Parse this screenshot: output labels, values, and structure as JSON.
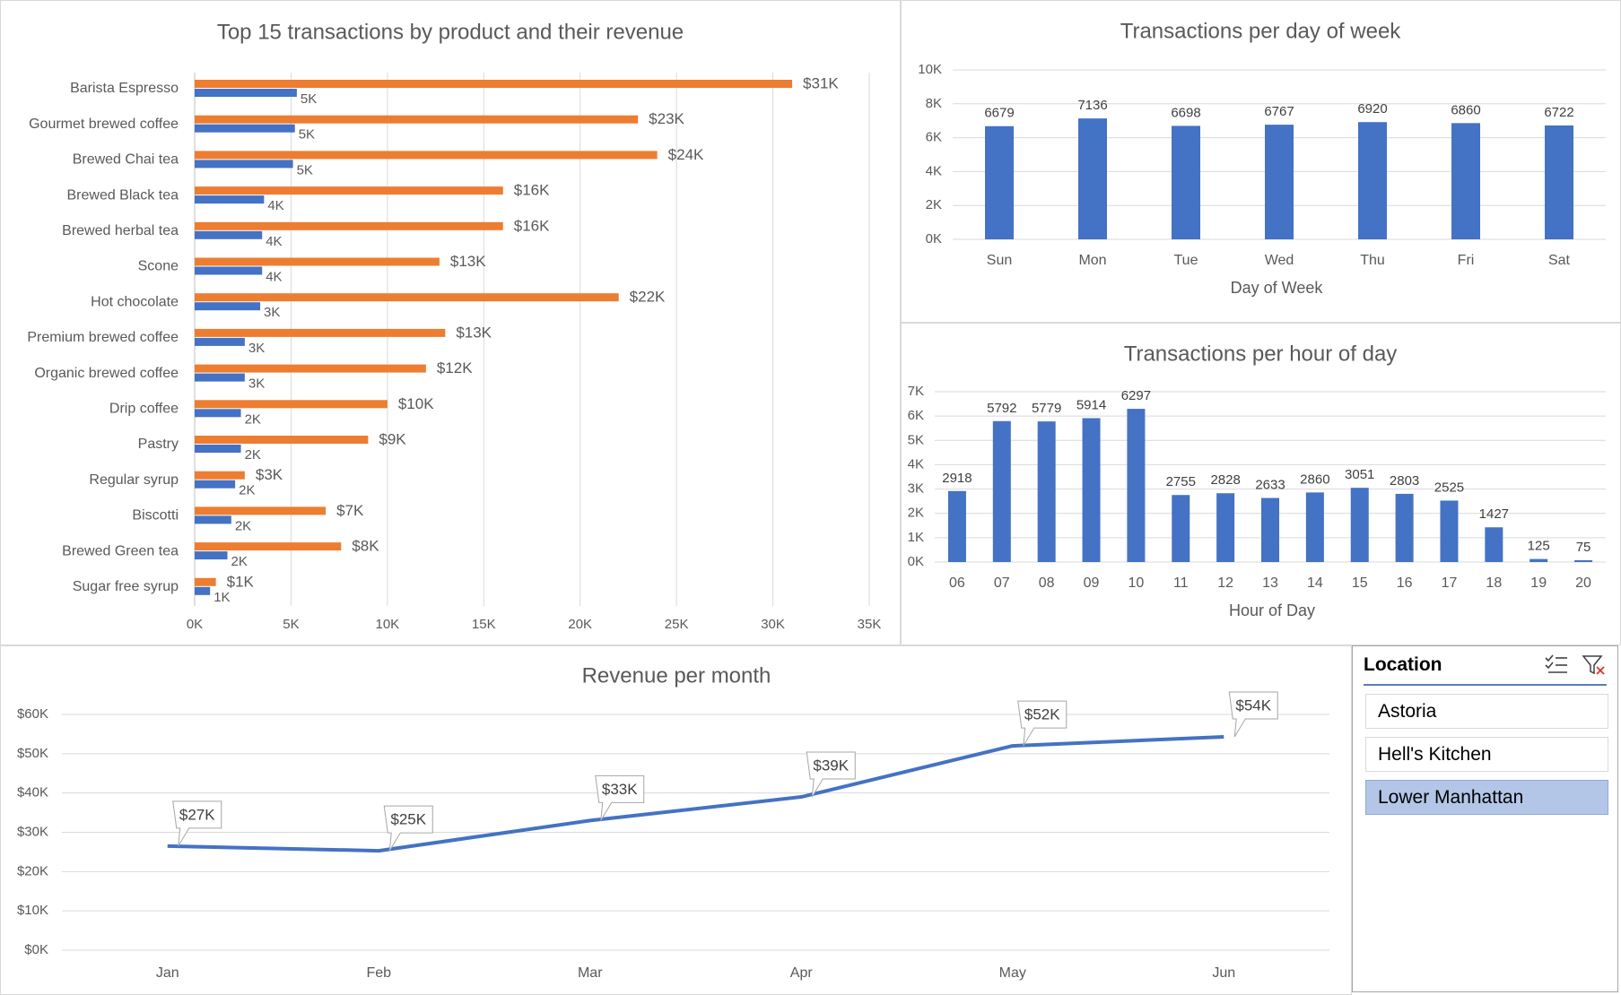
{
  "colors": {
    "blue": "#4472c4",
    "orange": "#ed7d31",
    "grid": "#d9d9d9",
    "text": "#595959",
    "slicer_selected": "#b4c6e7"
  },
  "chart_data": [
    {
      "type": "bar",
      "orientation": "horizontal",
      "title": "Top 15 transactions by product and their revenue",
      "categories": [
        "Barista Espresso",
        "Gourmet brewed coffee",
        "Brewed Chai tea",
        "Brewed Black tea",
        "Brewed herbal tea",
        "Scone",
        "Hot chocolate",
        "Premium brewed coffee",
        "Organic brewed coffee",
        "Drip coffee",
        "Pastry",
        "Regular syrup",
        "Biscotti",
        "Brewed Green tea",
        "Sugar free syrup"
      ],
      "series": [
        {
          "values": [
            31000,
            23000,
            24000,
            16000,
            16000,
            12700,
            22000,
            13000,
            12000,
            10000,
            9000,
            2600,
            6800,
            7600,
            1100
          ],
          "labels": [
            "$31K",
            "$23K",
            "$24K",
            "$16K",
            "$16K",
            "$13K",
            "$22K",
            "$13K",
            "$12K",
            "$10K",
            "$9K",
            "$3K",
            "$7K",
            "$8K",
            "$1K"
          ],
          "color": "#ed7d31"
        },
        {
          "values": [
            5300,
            5200,
            5100,
            3600,
            3500,
            3500,
            3400,
            2600,
            2600,
            2400,
            2400,
            2100,
            1900,
            1700,
            800
          ],
          "labels": [
            "5K",
            "5K",
            "5K",
            "4K",
            "4K",
            "4K",
            "3K",
            "3K",
            "3K",
            "2K",
            "2K",
            "2K",
            "2K",
            "2K",
            "1K"
          ],
          "color": "#4472c4"
        }
      ],
      "xticks": [
        "0K",
        "5K",
        "10K",
        "15K",
        "20K",
        "25K",
        "30K",
        "35K"
      ],
      "xlim": [
        0,
        35000
      ],
      "grid": true
    },
    {
      "type": "bar",
      "title": "Transactions per day of week",
      "categories": [
        "Sun",
        "Mon",
        "Tue",
        "Wed",
        "Thu",
        "Fri",
        "Sat"
      ],
      "values": [
        6679,
        7136,
        6698,
        6767,
        6920,
        6860,
        6722
      ],
      "xlabel": "Day of Week",
      "yticks": [
        "0K",
        "2K",
        "4K",
        "6K",
        "8K",
        "10K"
      ],
      "ylim": [
        0,
        10000
      ],
      "grid": true
    },
    {
      "type": "bar",
      "title": "Transactions per hour of day",
      "categories": [
        "06",
        "07",
        "08",
        "09",
        "10",
        "11",
        "12",
        "13",
        "14",
        "15",
        "16",
        "17",
        "18",
        "19",
        "20"
      ],
      "values": [
        2918,
        5792,
        5779,
        5914,
        6297,
        2755,
        2828,
        2633,
        2860,
        3051,
        2803,
        2525,
        1427,
        125,
        75
      ],
      "xlabel": "Hour of Day",
      "yticks": [
        "0K",
        "1K",
        "2K",
        "3K",
        "4K",
        "5K",
        "6K",
        "7K"
      ],
      "ylim": [
        0,
        7000
      ],
      "grid": true
    },
    {
      "type": "line",
      "title": "Revenue per month",
      "x": [
        "Jan",
        "Feb",
        "Mar",
        "Apr",
        "May",
        "Jun"
      ],
      "values": [
        26500,
        25300,
        33000,
        39000,
        52000,
        54300
      ],
      "labels": [
        "$27K",
        "$25K",
        "$33K",
        "$39K",
        "$52K",
        "$54K"
      ],
      "yticks": [
        "$0K",
        "$10K",
        "$20K",
        "$30K",
        "$40K",
        "$50K",
        "$60K"
      ],
      "ylim": [
        0,
        60000
      ],
      "grid": true
    }
  ],
  "slicer": {
    "title": "Location",
    "items": [
      {
        "label": "Astoria",
        "selected": false
      },
      {
        "label": "Hell's Kitchen",
        "selected": false
      },
      {
        "label": "Lower Manhattan",
        "selected": true
      }
    ],
    "icons": [
      "multi-select-icon",
      "clear-filter-icon"
    ]
  }
}
